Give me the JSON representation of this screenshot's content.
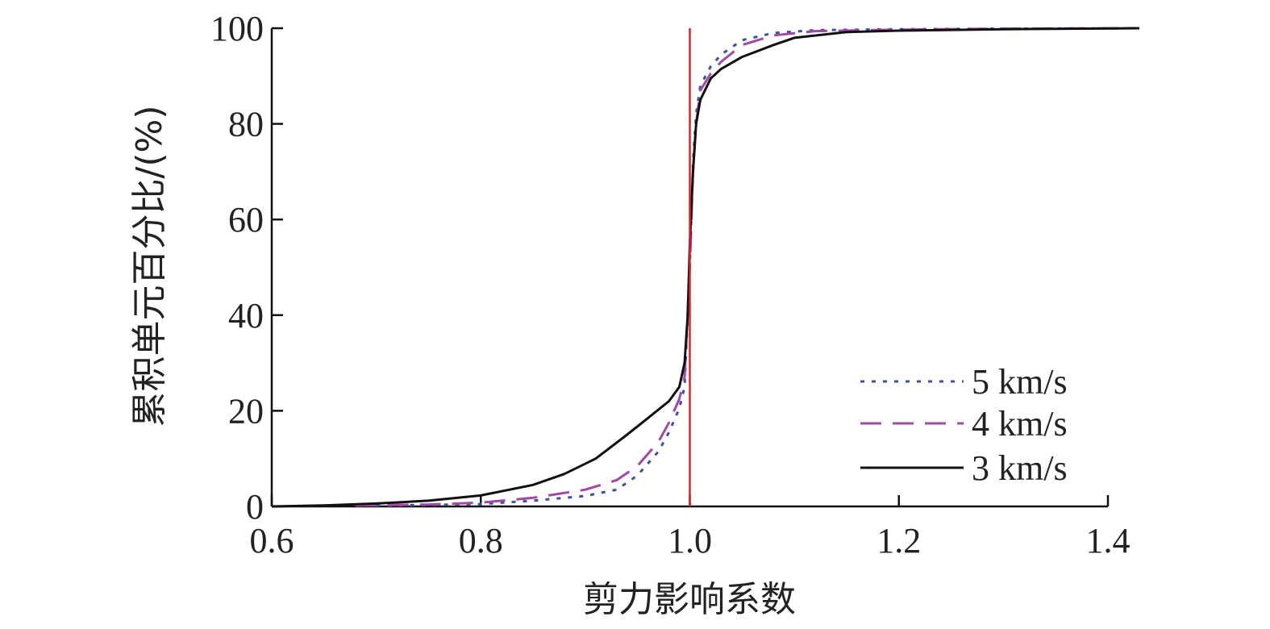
{
  "chart_data": {
    "type": "line",
    "xlabel": "剪力影响系数",
    "ylabel": "累积单元百分比/(%)",
    "xlim": [
      0.6,
      1.4
    ],
    "ylim": [
      0,
      100
    ],
    "x_ticks": [
      "0.6",
      "0.8",
      "1.0",
      "1.2",
      "1.4"
    ],
    "y_ticks": [
      "0",
      "20",
      "40",
      "60",
      "80",
      "100"
    ],
    "grid": false,
    "legend_position": "bottom-right",
    "reference_line": {
      "x": 1.0,
      "color": "#d62728"
    },
    "series": [
      {
        "name": "5 km/s",
        "style": "dotted",
        "color": "#3a53a4",
        "x": [
          0.7,
          0.75,
          0.8,
          0.85,
          0.9,
          0.93,
          0.95,
          0.97,
          0.98,
          0.99,
          0.995,
          1.0,
          1.003,
          1.006,
          1.01,
          1.02,
          1.03,
          1.05,
          1.08,
          1.12,
          1.2,
          1.3,
          1.43
        ],
        "y": [
          0.2,
          0.3,
          0.5,
          1.2,
          2.2,
          3.5,
          6.5,
          11.5,
          15.5,
          20.5,
          25.0,
          50.0,
          72.0,
          82.0,
          88.0,
          92.0,
          94.5,
          97.5,
          99.0,
          99.6,
          99.8,
          99.9,
          100.0
        ]
      },
      {
        "name": "4 km/s",
        "style": "dashed",
        "color": "#a349a4",
        "x": [
          0.68,
          0.75,
          0.8,
          0.85,
          0.9,
          0.93,
          0.95,
          0.97,
          0.98,
          0.99,
          0.995,
          1.0,
          1.003,
          1.006,
          1.01,
          1.02,
          1.03,
          1.05,
          1.08,
          1.12,
          1.2,
          1.3,
          1.43
        ],
        "y": [
          0.2,
          0.4,
          0.8,
          1.8,
          3.5,
          5.5,
          8.5,
          13.5,
          17.5,
          22.5,
          27.0,
          50.0,
          70.0,
          80.0,
          87.0,
          90.5,
          93.0,
          96.5,
          98.5,
          99.4,
          99.7,
          99.9,
          100.0
        ]
      },
      {
        "name": "3 km/s",
        "style": "solid",
        "color": "#111111",
        "x": [
          0.6,
          0.65,
          0.7,
          0.75,
          0.8,
          0.85,
          0.88,
          0.91,
          0.94,
          0.96,
          0.98,
          0.99,
          0.995,
          0.998,
          1.0,
          1.003,
          1.006,
          1.01,
          1.02,
          1.03,
          1.05,
          1.08,
          1.1,
          1.15,
          1.2,
          1.3,
          1.43
        ],
        "y": [
          0.0,
          0.2,
          0.6,
          1.2,
          2.3,
          4.5,
          6.8,
          10.0,
          15.0,
          18.5,
          22.0,
          25.0,
          30.0,
          40.0,
          55.0,
          70.0,
          80.0,
          85.0,
          89.5,
          91.5,
          94.0,
          96.5,
          98.0,
          99.2,
          99.5,
          99.8,
          100.0
        ]
      }
    ]
  }
}
